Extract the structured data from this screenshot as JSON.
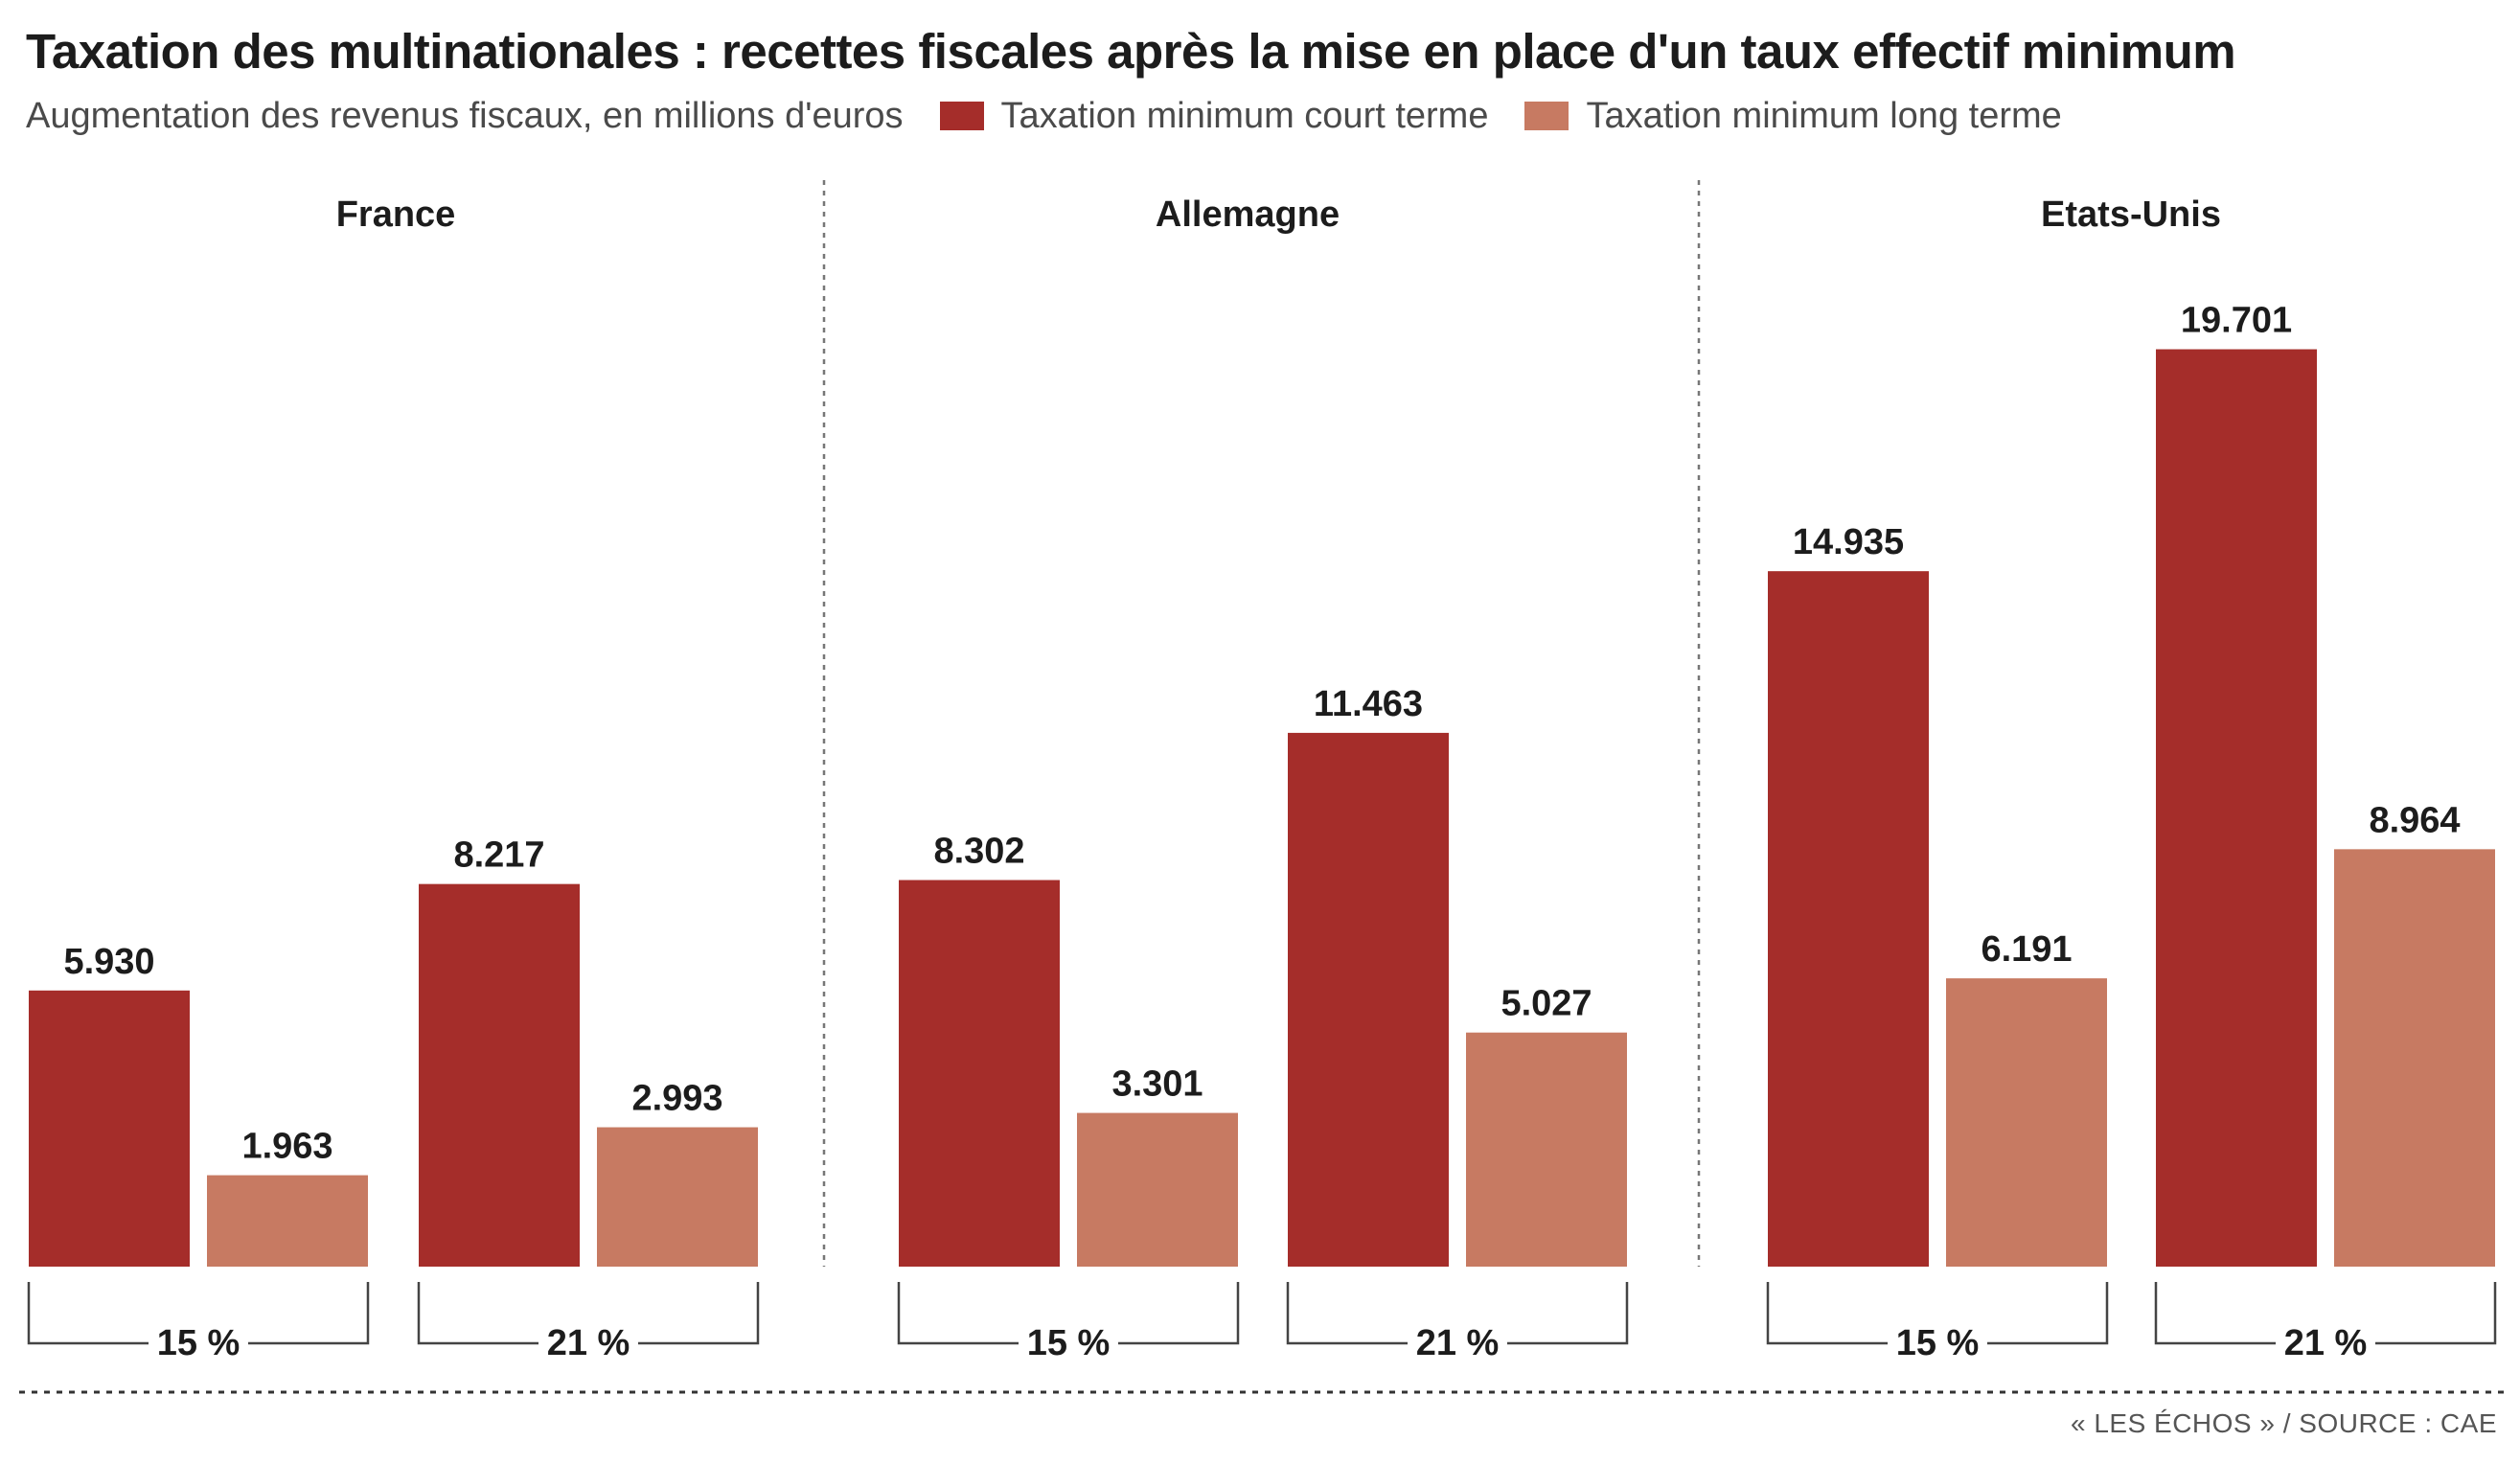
{
  "title": "Taxation des multinationales : recettes fiscales après la mise en place d'un taux effectif minimum",
  "subtitle": "Augmentation des revenus fiscaux, en millions d'euros",
  "source": "« LES ÉCHOS » / SOURCE : CAE",
  "chart_data": {
    "type": "bar",
    "title": "Taxation des multinationales : recettes fiscales après la mise en place d'un taux effectif minimum",
    "subtitle": "Augmentation des revenus fiscaux, en millions d'euros",
    "legend": [
      {
        "name": "Taxation minimum court terme",
        "color": "#a52d2a"
      },
      {
        "name": "Taxation minimum long terme",
        "color": "#c77a62"
      }
    ],
    "legend_position": "top",
    "grid": false,
    "ylim": [
      0,
      20000
    ],
    "panels": [
      {
        "name": "France",
        "groups": [
          {
            "rate": "15 %",
            "short": 5930,
            "long": 1963,
            "short_label": "5.930",
            "long_label": "1.963"
          },
          {
            "rate": "21 %",
            "short": 8217,
            "long": 2993,
            "short_label": "8.217",
            "long_label": "2.993"
          }
        ]
      },
      {
        "name": "Allemagne",
        "groups": [
          {
            "rate": "15 %",
            "short": 8302,
            "long": 3301,
            "short_label": "8.302",
            "long_label": "3.301"
          },
          {
            "rate": "21 %",
            "short": 11463,
            "long": 5027,
            "short_label": "11.463",
            "long_label": "5.027"
          }
        ]
      },
      {
        "name": "Etats-Unis",
        "groups": [
          {
            "rate": "15 %",
            "short": 14935,
            "long": 6191,
            "short_label": "14.935",
            "long_label": "6.191"
          },
          {
            "rate": "21 %",
            "short": 19701,
            "long": 8964,
            "short_label": "19.701",
            "long_label": "8.964"
          }
        ]
      }
    ]
  }
}
